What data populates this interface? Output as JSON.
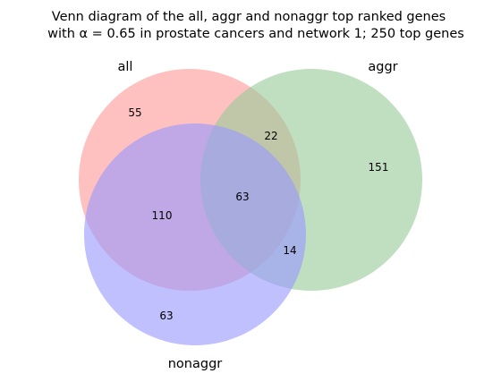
{
  "chart_data": {
    "type": "venn",
    "title_lines": [
      "Venn diagram of the all, aggr and nonaggr top ranked genes",
      "with α = 0.65 in prostate cancers and network 1; 250 top genes"
    ],
    "sets": [
      {
        "name": "all",
        "color": "#ff9999"
      },
      {
        "name": "aggr",
        "color": "#99cc99"
      },
      {
        "name": "nonaggr",
        "color": "#9999ff"
      }
    ],
    "regions": [
      {
        "key": "all_only",
        "sets": [
          "all"
        ],
        "value": "55"
      },
      {
        "key": "aggr_only",
        "sets": [
          "aggr"
        ],
        "value": "151"
      },
      {
        "key": "all_aggr",
        "sets": [
          "all",
          "aggr"
        ],
        "value": "22"
      },
      {
        "key": "all_nonaggr",
        "sets": [
          "all",
          "nonaggr"
        ],
        "value": "110"
      },
      {
        "key": "all_aggr_nonaggr",
        "sets": [
          "all",
          "aggr",
          "nonaggr"
        ],
        "value": "63"
      },
      {
        "key": "aggr_nonaggr",
        "sets": [
          "aggr",
          "nonaggr"
        ],
        "value": "14"
      },
      {
        "key": "nonaggr_only",
        "sets": [
          "nonaggr"
        ],
        "value": "63"
      }
    ]
  }
}
